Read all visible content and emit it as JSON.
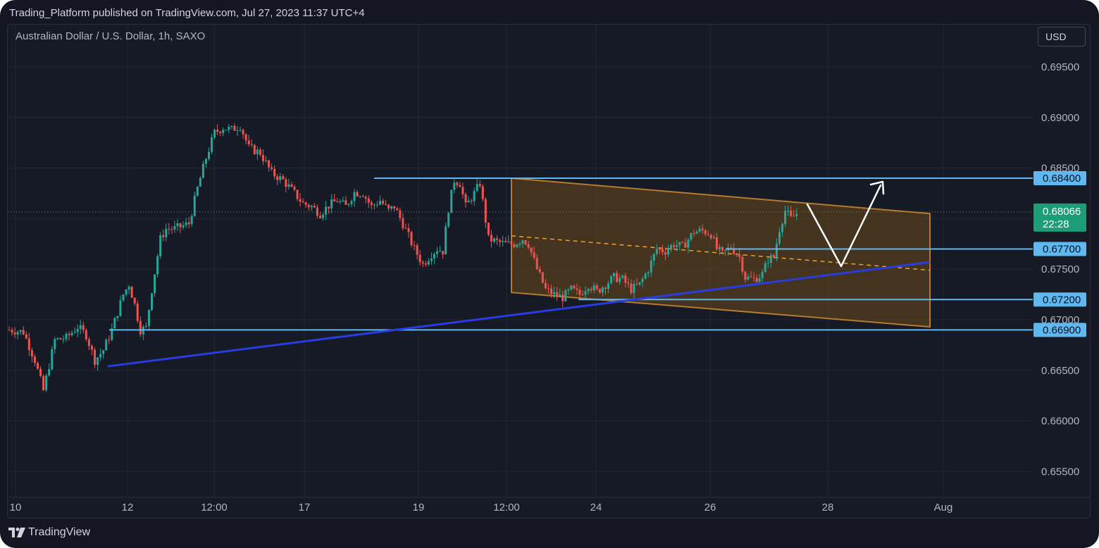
{
  "header": {
    "publisher_line": "Trading_Platform published on TradingView.com, Jul 27, 2023 11:37 UTC+4"
  },
  "chart": {
    "symbol_line": "Australian Dollar / U.S. Dollar, 1h, SAXO",
    "currency_button": "USD",
    "footer_brand": "TradingView"
  },
  "colors": {
    "background": "#161a25",
    "bull": "#26a69a",
    "bear": "#ef5350",
    "level_line": "#5fb8f0",
    "channel_fill": "#6b4a1c",
    "channel_line": "#b47a30",
    "trendline": "#2a3ce0",
    "projection": "#ffffff"
  },
  "chart_data": {
    "type": "candlestick",
    "title": "Australian Dollar / U.S. Dollar, 1h, SAXO",
    "x_tick_labels": [
      "10",
      "12",
      "12:00",
      "17",
      "19",
      "12:00",
      "24",
      "26",
      "28",
      "Aug"
    ],
    "y_tick_labels": [
      "0.69500",
      "0.69000",
      "0.68500",
      "0.68000",
      "0.67500",
      "0.67000",
      "0.66500",
      "0.66000",
      "0.65500"
    ],
    "ylim": [
      0.6525,
      0.6975
    ],
    "grid": true,
    "price_path": [
      [
        0,
        0.669
      ],
      [
        5,
        0.6688
      ],
      [
        9,
        0.666
      ],
      [
        12,
        0.663
      ],
      [
        14,
        0.6655
      ],
      [
        16,
        0.668
      ],
      [
        20,
        0.6682
      ],
      [
        24,
        0.6693
      ],
      [
        27,
        0.6685
      ],
      [
        30,
        0.666
      ],
      [
        33,
        0.667
      ],
      [
        36,
        0.669
      ],
      [
        40,
        0.6725
      ],
      [
        42,
        0.6735
      ],
      [
        44,
        0.6715
      ],
      [
        46,
        0.669
      ],
      [
        48,
        0.6692
      ],
      [
        50,
        0.673
      ],
      [
        53,
        0.678
      ],
      [
        55,
        0.679
      ],
      [
        58,
        0.679
      ],
      [
        63,
        0.6795
      ],
      [
        66,
        0.683
      ],
      [
        69,
        0.686
      ],
      [
        72,
        0.6885
      ],
      [
        75,
        0.689
      ],
      [
        78,
        0.6888
      ],
      [
        81,
        0.6892
      ],
      [
        84,
        0.687
      ],
      [
        88,
        0.6865
      ],
      [
        92,
        0.6845
      ],
      [
        96,
        0.6838
      ],
      [
        100,
        0.6825
      ],
      [
        103,
        0.6815
      ],
      [
        106,
        0.6812
      ],
      [
        109,
        0.6805
      ],
      [
        112,
        0.6813
      ],
      [
        115,
        0.6818
      ],
      [
        118,
        0.6812
      ],
      [
        121,
        0.6826
      ],
      [
        124,
        0.6825
      ],
      [
        127,
        0.6812
      ],
      [
        130,
        0.6818
      ],
      [
        133,
        0.6808
      ],
      [
        135,
        0.6812
      ],
      [
        138,
        0.6795
      ],
      [
        142,
        0.677
      ],
      [
        145,
        0.6755
      ],
      [
        148,
        0.6765
      ],
      [
        150,
        0.677
      ],
      [
        152,
        0.6768
      ],
      [
        154,
        0.681
      ],
      [
        156,
        0.6838
      ],
      [
        158,
        0.6835
      ],
      [
        160,
        0.6812
      ],
      [
        163,
        0.6825
      ],
      [
        165,
        0.6835
      ],
      [
        168,
        0.678
      ],
      [
        171,
        0.6777
      ],
      [
        174,
        0.6775
      ],
      [
        177,
        0.6775
      ],
      [
        180,
        0.678
      ],
      [
        182,
        0.6775
      ],
      [
        185,
        0.675
      ],
      [
        188,
        0.673
      ],
      [
        191,
        0.6725
      ],
      [
        194,
        0.6722
      ],
      [
        197,
        0.673
      ],
      [
        200,
        0.6725
      ],
      [
        203,
        0.6735
      ],
      [
        206,
        0.6728
      ],
      [
        209,
        0.6735
      ],
      [
        212,
        0.6742
      ],
      [
        215,
        0.674
      ],
      [
        218,
        0.673
      ],
      [
        221,
        0.6735
      ],
      [
        224,
        0.675
      ],
      [
        227,
        0.677
      ],
      [
        230,
        0.6768
      ],
      [
        233,
        0.6775
      ],
      [
        236,
        0.6772
      ],
      [
        240,
        0.6787
      ],
      [
        243,
        0.6788
      ],
      [
        246,
        0.6785
      ],
      [
        248,
        0.677
      ],
      [
        250,
        0.6765
      ],
      [
        253,
        0.6772
      ],
      [
        256,
        0.6762
      ],
      [
        258,
        0.6742
      ],
      [
        261,
        0.674
      ],
      [
        264,
        0.6745
      ],
      [
        266,
        0.676
      ],
      [
        268,
        0.6762
      ],
      [
        270,
        0.679
      ],
      [
        272,
        0.6808
      ],
      [
        274,
        0.68
      ],
      [
        276,
        0.6805
      ]
    ],
    "horizontal_levels": [
      {
        "label": "0.68400",
        "value": 0.684
      },
      {
        "label": "0.67700",
        "value": 0.677
      },
      {
        "label": "0.67200",
        "value": 0.672
      },
      {
        "label": "0.66900",
        "value": 0.669
      }
    ],
    "current_price": {
      "label": "0.68066",
      "value": 0.68066,
      "countdown": "22:28"
    },
    "channel": {
      "upper": [
        [
          0.684,
          0
        ],
        [
          0.6805,
          1
        ]
      ],
      "lower": [
        [
          0.6727,
          0
        ],
        [
          0.6693,
          1
        ]
      ],
      "midline": [
        [
          0.6783,
          0
        ],
        [
          0.6749,
          1
        ]
      ]
    },
    "trendline": {
      "from": 0.6654,
      "to": 0.6757
    }
  }
}
